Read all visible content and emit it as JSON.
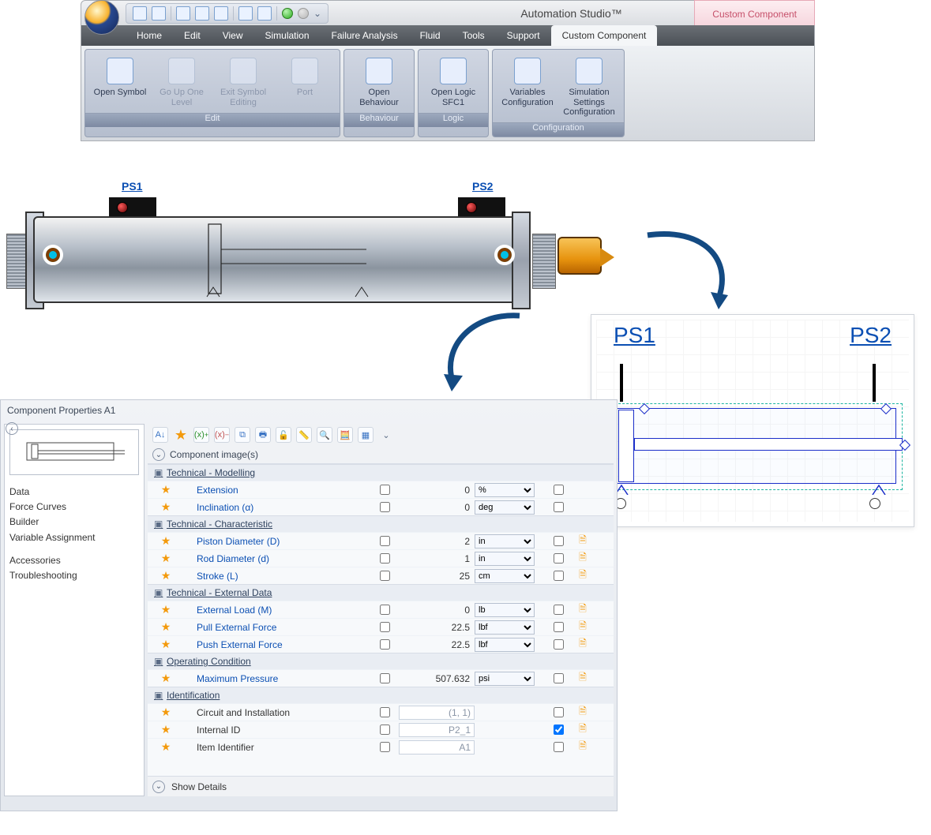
{
  "app": {
    "title": "Automation Studio™",
    "context_tab": "Custom Component"
  },
  "tabs": [
    "Home",
    "Edit",
    "View",
    "Simulation",
    "Failure Analysis",
    "Fluid",
    "Tools",
    "Support",
    "Custom Component"
  ],
  "ribbon": {
    "groups": [
      {
        "caption": "Edit",
        "items": [
          {
            "label": "Open Symbol",
            "enabled": true
          },
          {
            "label": "Go Up One Level",
            "enabled": false
          },
          {
            "label": "Exit Symbol Editing",
            "enabled": false
          },
          {
            "label": "Port",
            "enabled": false
          }
        ]
      },
      {
        "caption": "Behaviour",
        "items": [
          {
            "label": "Open Behaviour",
            "enabled": true
          }
        ]
      },
      {
        "caption": "Logic",
        "items": [
          {
            "label": "Open Logic SFC1",
            "enabled": true
          }
        ]
      },
      {
        "caption": "Configuration",
        "items": [
          {
            "label": "Variables Configuration",
            "enabled": true
          },
          {
            "label": "Simulation Settings Configuration",
            "enabled": true
          }
        ]
      }
    ]
  },
  "cylinder": {
    "ps1": "PS1",
    "ps2": "PS2",
    "accent": "#134a82"
  },
  "symbol": {
    "ps1": "PS1",
    "ps2": "PS2"
  },
  "props": {
    "title": "Component Properties A1",
    "image_section": "Component image(s)",
    "nav": [
      "Data",
      "Force Curves",
      "Builder",
      "Variable Assignment",
      "",
      "Accessories",
      "Troubleshooting"
    ],
    "footer": "Show Details",
    "groups": [
      {
        "header": "Technical - Modelling",
        "rows": [
          {
            "name": "Extension",
            "value": "0",
            "unit": "%",
            "link": true
          },
          {
            "name": "Inclination (α)",
            "value": "0",
            "unit": "deg",
            "link": true
          }
        ]
      },
      {
        "header": "Technical - Characteristic",
        "rows": [
          {
            "name": "Piston Diameter (D)",
            "value": "2",
            "unit": "in",
            "link": true,
            "doc": true
          },
          {
            "name": "Rod Diameter (d)",
            "value": "1",
            "unit": "in",
            "link": true,
            "doc": true
          },
          {
            "name": "Stroke (L)",
            "value": "25",
            "unit": "cm",
            "link": true,
            "doc": true
          }
        ]
      },
      {
        "header": "Technical - External Data",
        "rows": [
          {
            "name": "External Load (M)",
            "value": "0",
            "unit": "lb",
            "link": true,
            "doc": true
          },
          {
            "name": "Pull External Force",
            "value": "22.5",
            "unit": "lbf",
            "link": true,
            "doc": true
          },
          {
            "name": "Push External Force",
            "value": "22.5",
            "unit": "lbf",
            "link": true,
            "doc": true
          }
        ]
      },
      {
        "header": "Operating Condition",
        "rows": [
          {
            "name": "Maximum Pressure",
            "value": "507.632",
            "unit": "psi",
            "link": true,
            "doc": true
          }
        ]
      },
      {
        "header": "Identification",
        "rows": [
          {
            "name": "Circuit and Installation",
            "value": "(1, 1)",
            "unit": "",
            "link": false,
            "doc": true,
            "inputlike": true,
            "chk2": false
          },
          {
            "name": "Internal ID",
            "value": "P2_1",
            "unit": "",
            "link": false,
            "doc": true,
            "inputlike": true,
            "chk2": true
          },
          {
            "name": "Item Identifier",
            "value": "A1",
            "unit": "",
            "link": false,
            "doc": true,
            "inputlike": true,
            "chk2": false
          }
        ]
      }
    ]
  }
}
